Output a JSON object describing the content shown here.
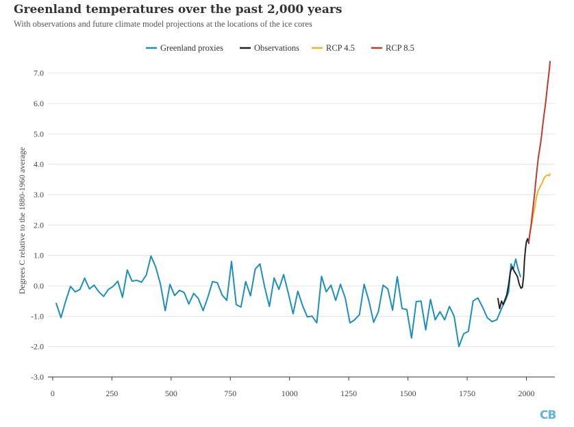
{
  "header": {
    "title": "Greenland temperatures over the past 2,000 years",
    "subtitle": "With observations and future climate model projections at the locations of the ice cores"
  },
  "brand": {
    "logo_text": "CB"
  },
  "chart_data": {
    "type": "line",
    "title": "Greenland temperatures over the past 2,000 years",
    "subtitle": "With observations and future climate model projections at the locations of the ice cores",
    "xlabel": "",
    "ylabel": "Degrees C relative to the 1880-1960 average",
    "xlim": [
      -20,
      2120
    ],
    "ylim": [
      -3,
      7.6
    ],
    "xticks": [
      0,
      250,
      500,
      750,
      1000,
      1250,
      1500,
      1750,
      2000
    ],
    "xtick_labels": [
      "0",
      "250",
      "500",
      "750",
      "1000",
      "1250",
      "1500",
      "1750",
      "2000"
    ],
    "yticks": [
      -3,
      -2,
      -1,
      0,
      1,
      2,
      3,
      4,
      5,
      6,
      7
    ],
    "ytick_labels": [
      "-3.0",
      "-2.0",
      "-1.0",
      "0.0",
      "1.0",
      "2.0",
      "3.0",
      "4.0",
      "5.0",
      "6.0",
      "7.0"
    ],
    "grid": "horizontal",
    "legend_position": "top-center",
    "series": [
      {
        "name": "Greenland proxies",
        "color": "#1a8fbf",
        "x": [
          15,
          35,
          55,
          75,
          95,
          115,
          135,
          155,
          175,
          195,
          215,
          235,
          255,
          275,
          295,
          315,
          335,
          355,
          375,
          395,
          415,
          435,
          455,
          475,
          495,
          515,
          535,
          555,
          575,
          595,
          615,
          635,
          655,
          675,
          695,
          715,
          735,
          755,
          775,
          795,
          815,
          835,
          855,
          875,
          895,
          915,
          935,
          955,
          975,
          995,
          1015,
          1035,
          1055,
          1075,
          1095,
          1115,
          1135,
          1155,
          1175,
          1195,
          1215,
          1235,
          1255,
          1275,
          1295,
          1315,
          1335,
          1355,
          1375,
          1395,
          1415,
          1435,
          1455,
          1475,
          1495,
          1515,
          1535,
          1555,
          1575,
          1595,
          1615,
          1635,
          1655,
          1675,
          1695,
          1715,
          1735,
          1755,
          1775,
          1795,
          1815,
          1835,
          1855,
          1875,
          1895,
          1915,
          1925,
          1935,
          1945,
          1955,
          1965,
          1975
        ],
        "values": [
          -0.58,
          -1.05,
          -0.5,
          -0.02,
          -0.2,
          -0.12,
          0.25,
          -0.1,
          0.02,
          -0.2,
          -0.35,
          -0.12,
          -0.02,
          0.15,
          -0.38,
          0.52,
          0.15,
          0.18,
          0.12,
          0.35,
          0.98,
          0.62,
          0.05,
          -0.82,
          0.05,
          -0.32,
          -0.15,
          -0.22,
          -0.6,
          -0.25,
          -0.42,
          -0.82,
          -0.38,
          0.14,
          0.1,
          -0.3,
          -0.48,
          0.8,
          -0.62,
          -0.7,
          0.14,
          -0.33,
          0.55,
          0.72,
          -0.04,
          -0.68,
          0.26,
          -0.12,
          0.37,
          -0.25,
          -0.92,
          -0.18,
          -0.65,
          -1.02,
          -1.0,
          -1.22,
          0.31,
          -0.2,
          0.02,
          -0.48,
          0.05,
          -0.4,
          -1.22,
          -1.12,
          -0.95,
          0.05,
          -0.5,
          -1.2,
          -0.85,
          0.02,
          -0.1,
          -0.8,
          0.3,
          -0.75,
          -0.78,
          -1.72,
          -0.52,
          -0.5,
          -1.45,
          -0.45,
          -1.12,
          -0.85,
          -1.12,
          -0.68,
          -1.0,
          -2.0,
          -1.58,
          -1.5,
          -0.5,
          -0.4,
          -0.7,
          -1.05,
          -1.18,
          -1.12,
          -0.75,
          -0.42,
          -0.2,
          0.72,
          0.55,
          0.88,
          0.55,
          0.3
        ]
      },
      {
        "name": "Observations",
        "color": "#222222",
        "x": [
          1880,
          1887,
          1895,
          1902,
          1910,
          1917,
          1925,
          1932,
          1940,
          1947,
          1955,
          1962,
          1970,
          1977,
          1983,
          1988,
          1992,
          1996,
          2000,
          2005,
          2010
        ],
        "values": [
          -0.42,
          -0.75,
          -0.5,
          -0.62,
          -0.45,
          -0.3,
          0.05,
          0.45,
          0.62,
          0.5,
          0.4,
          0.3,
          0.05,
          -0.08,
          -0.05,
          0.3,
          0.85,
          1.2,
          1.45,
          1.55,
          1.4
        ]
      },
      {
        "name": "RCP 4.5",
        "color": "#f0b429",
        "x": [
          2010,
          2015,
          2020,
          2025,
          2030,
          2035,
          2040,
          2045,
          2050,
          2055,
          2060,
          2065,
          2070,
          2075,
          2080,
          2085,
          2090,
          2095,
          2100
        ],
        "values": [
          1.45,
          1.7,
          1.95,
          2.15,
          2.4,
          2.55,
          2.8,
          3.0,
          3.15,
          3.2,
          3.3,
          3.35,
          3.45,
          3.55,
          3.6,
          3.63,
          3.65,
          3.62,
          3.68
        ]
      },
      {
        "name": "RCP 8.5",
        "color": "#c0392b",
        "x": [
          2010,
          2015,
          2020,
          2025,
          2030,
          2035,
          2040,
          2045,
          2050,
          2055,
          2060,
          2065,
          2070,
          2075,
          2080,
          2085,
          2090,
          2095,
          2100
        ],
        "values": [
          1.45,
          1.75,
          2.0,
          2.35,
          2.7,
          3.05,
          3.45,
          3.85,
          4.2,
          4.45,
          4.7,
          5.0,
          5.35,
          5.65,
          5.95,
          6.3,
          6.65,
          7.0,
          7.38
        ]
      }
    ]
  }
}
